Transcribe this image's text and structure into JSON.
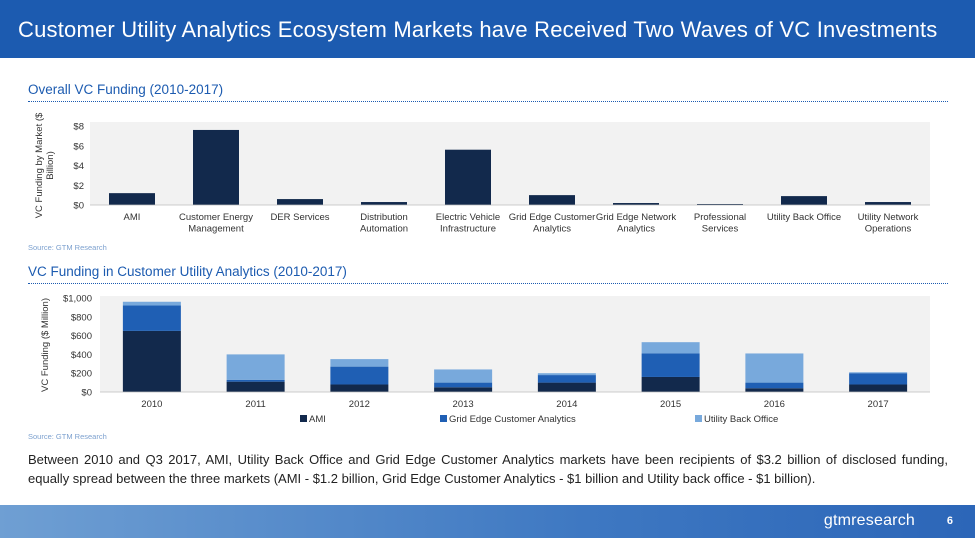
{
  "slide": {
    "title": "Customer Utility Analytics Ecosystem Markets have Received Two Waves of VC Investments",
    "brand": "gtmresearch",
    "page_number": "6",
    "summary": "Between 2010 and Q3 2017, AMI, Utility Back Office and Grid Edge Customer Analytics markets have been recipients of $3.2 billion of disclosed funding, equally spread between the three markets (AMI - $1.2 billion, Grid Edge Customer Analytics - $1 billion and Utility back office - $1 billion).",
    "colors": {
      "title_bar": "#1c5bb0",
      "dark_navy": "#12294c",
      "medium_blue": "#1f5fb4",
      "light_blue": "#78a9dc",
      "plot_bg": "#f2f2f2"
    }
  },
  "chart_data": [
    {
      "type": "bar",
      "section_title": "Overall VC Funding (2010-2017)",
      "source": "Source: GTM Research",
      "ylabel": "VC Funding by Market ($ Billion)",
      "ylim": [
        0,
        8
      ],
      "yticks": [
        0,
        2,
        4,
        6,
        8
      ],
      "ytick_labels": [
        "$0",
        "$2",
        "$4",
        "$6",
        "$8"
      ],
      "categories": [
        "AMI",
        "Customer Energy Management",
        "DER Services",
        "Distribution Automation",
        "Electric Vehicle Infrastructure",
        "Grid Edge Customer Analytics",
        "Grid Edge Network Analytics",
        "Professional Services",
        "Utility Back Office",
        "Utility Network Operations"
      ],
      "category_lines": [
        [
          "AMI"
        ],
        [
          "Customer Energy",
          "Management"
        ],
        [
          "DER Services"
        ],
        [
          "Distribution",
          "Automation"
        ],
        [
          "Electric Vehicle",
          "Infrastructure"
        ],
        [
          "Grid Edge Customer",
          "Analytics"
        ],
        [
          "Grid Edge Network",
          "Analytics"
        ],
        [
          "Professional",
          "Services"
        ],
        [
          "Utility Back Office"
        ],
        [
          "Utility Network",
          "Operations"
        ]
      ],
      "values": [
        1.2,
        7.6,
        0.6,
        0.3,
        5.6,
        1.0,
        0.2,
        0.1,
        0.9,
        0.3
      ],
      "grid": false,
      "legend": "none"
    },
    {
      "type": "bar",
      "stacked": true,
      "section_title": "VC Funding in Customer Utility Analytics (2010-2017)",
      "source": "Source: GTM Research",
      "ylabel": "VC Funding ($ Million)",
      "ylim": [
        0,
        1000
      ],
      "yticks": [
        0,
        200,
        400,
        600,
        800,
        1000
      ],
      "ytick_labels": [
        "$0",
        "$200",
        "$400",
        "$600",
        "$800",
        "$1,000"
      ],
      "categories": [
        "2010",
        "2011",
        "2012",
        "2013",
        "2014",
        "2015",
        "2016",
        "2017"
      ],
      "series": [
        {
          "name": "AMI",
          "color": "#12294c",
          "values": [
            650,
            110,
            80,
            50,
            100,
            160,
            40,
            80
          ]
        },
        {
          "name": "Grid Edge Customer Analytics",
          "color": "#1f5fb4",
          "values": [
            270,
            20,
            190,
            50,
            80,
            250,
            60,
            120
          ]
        },
        {
          "name": "Utility Back Office",
          "color": "#78a9dc",
          "values": [
            40,
            270,
            80,
            140,
            20,
            120,
            310,
            10
          ]
        }
      ],
      "grid": false,
      "legend": "bottom"
    }
  ]
}
